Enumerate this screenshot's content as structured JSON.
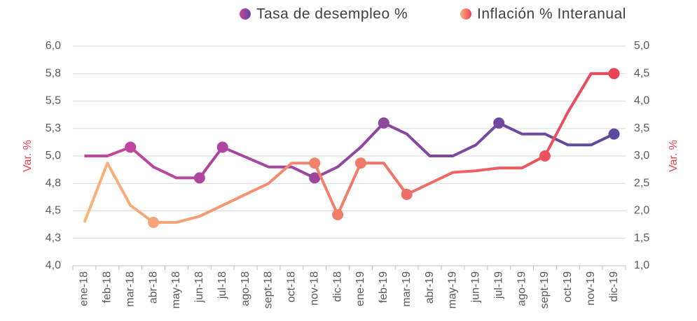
{
  "chart_data": {
    "type": "line",
    "categories": [
      "ene-18",
      "feb-18",
      "mar-18",
      "abr-18",
      "may-18",
      "jun-18",
      "jul-18",
      "ago-18",
      "sept-18",
      "oct-18",
      "nov-18",
      "dic-18",
      "ene-19",
      "feb-19",
      "mar-19",
      "abr-19",
      "may-19",
      "jun-19",
      "jul-19",
      "ago-19",
      "sept-19",
      "oct-19",
      "nov-19",
      "dic-19"
    ],
    "series": [
      {
        "name": "Tasa de desempleo %",
        "color_start": "#c8459e",
        "color": "#5b4a9f",
        "axis": "y",
        "values": [
          5.0,
          5.0,
          5.08,
          4.9,
          4.8,
          4.8,
          5.08,
          4.99,
          4.9,
          4.9,
          4.8,
          4.9,
          5.08,
          5.3,
          5.2,
          5.0,
          5.0,
          5.1,
          5.3,
          5.2,
          5.2,
          5.1,
          5.1,
          5.2
        ],
        "markers": [
          2,
          5,
          6,
          10,
          13,
          18,
          23
        ]
      },
      {
        "name": "Inflación % Interanual",
        "color_start": "#f9b47b",
        "color": "#e9435a",
        "axis": "y2",
        "values": [
          1.79,
          2.87,
          2.1,
          1.79,
          1.79,
          1.9,
          2.1,
          2.3,
          2.5,
          2.87,
          2.87,
          1.93,
          2.87,
          2.87,
          2.3,
          2.5,
          2.7,
          2.73,
          2.78,
          2.78,
          3.0,
          3.8,
          4.5,
          4.5
        ],
        "markers": [
          3,
          10,
          11,
          12,
          14,
          20,
          23
        ]
      }
    ],
    "ylabel": "Var. %",
    "y2label": "Var. %",
    "axis_label_color": "#e8414f",
    "ylim": [
      4.0,
      6.0
    ],
    "yticks": [
      {
        "value": 4.0,
        "label": "4,0"
      },
      {
        "value": 4.25,
        "label": "4,3"
      },
      {
        "value": 4.5,
        "label": "4,5"
      },
      {
        "value": 4.75,
        "label": "4,8"
      },
      {
        "value": 5.0,
        "label": "5,0"
      },
      {
        "value": 5.25,
        "label": "5,3"
      },
      {
        "value": 5.5,
        "label": "5,5"
      },
      {
        "value": 5.75,
        "label": "5,8"
      },
      {
        "value": 6.0,
        "label": "6,0"
      }
    ],
    "y2lim": [
      1.0,
      5.0
    ],
    "y2ticks": [
      {
        "value": 1.0,
        "label": "1,0"
      },
      {
        "value": 1.5,
        "label": "1,5"
      },
      {
        "value": 2.0,
        "label": "2,0"
      },
      {
        "value": 2.5,
        "label": "2,5"
      },
      {
        "value": 3.0,
        "label": "3,0"
      },
      {
        "value": 3.5,
        "label": "3,5"
      },
      {
        "value": 4.0,
        "label": "4,0"
      },
      {
        "value": 4.5,
        "label": "4,5"
      },
      {
        "value": 5.0,
        "label": "5,0"
      }
    ],
    "grid": true
  }
}
